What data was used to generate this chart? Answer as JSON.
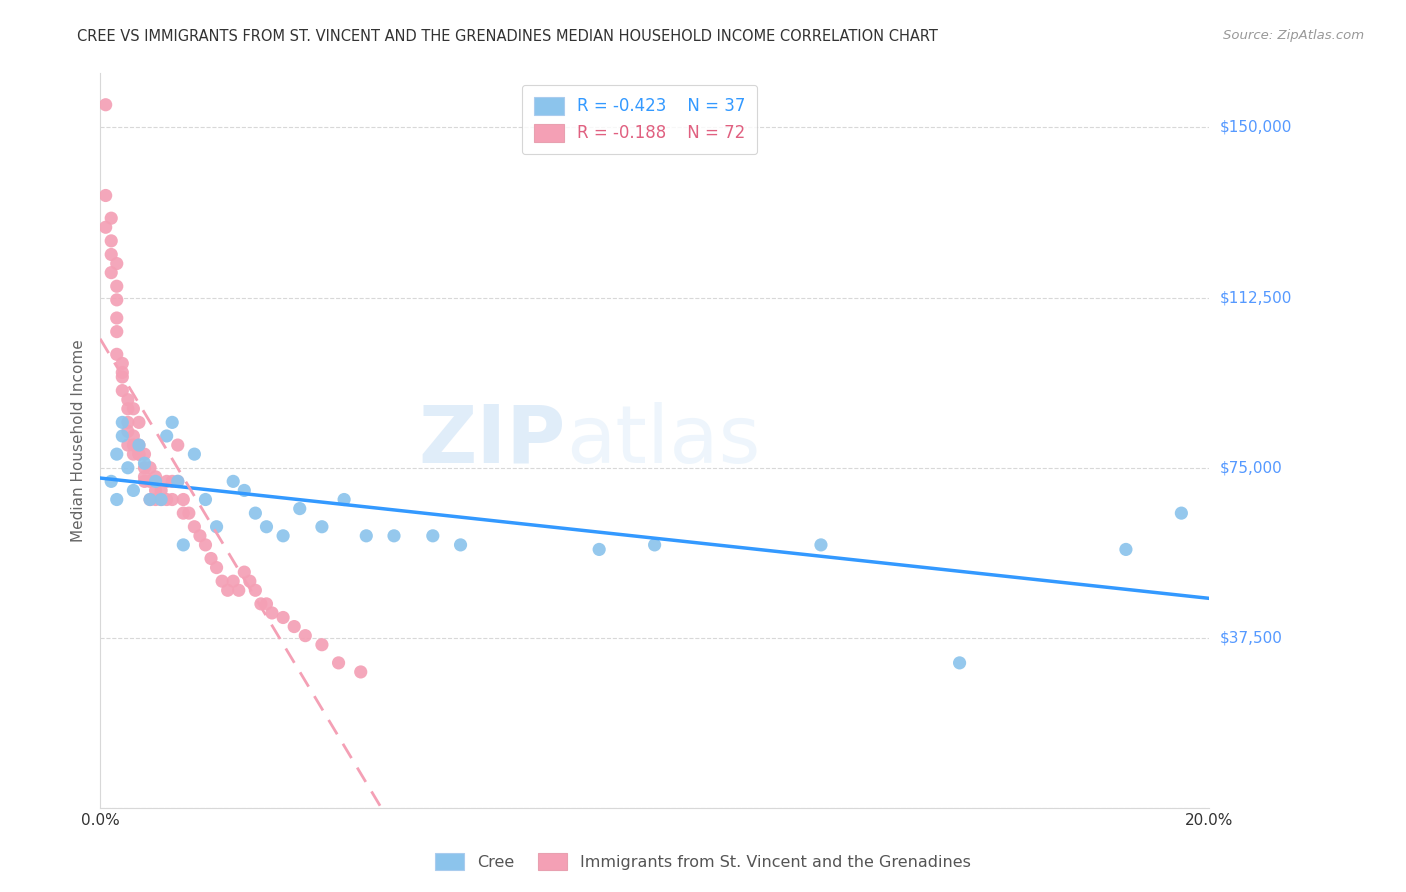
{
  "title": "CREE VS IMMIGRANTS FROM ST. VINCENT AND THE GRENADINES MEDIAN HOUSEHOLD INCOME CORRELATION CHART",
  "source": "Source: ZipAtlas.com",
  "ylabel": "Median Household Income",
  "yticks": [
    0,
    37500,
    75000,
    112500,
    150000
  ],
  "ytick_labels": [
    "",
    "$37,500",
    "$75,000",
    "$112,500",
    "$150,000"
  ],
  "xlim": [
    0.0,
    0.2
  ],
  "ylim": [
    0,
    162000
  ],
  "cree_color": "#8CC4EC",
  "svg_color": "#F4A0B5",
  "cree_line_color": "#3399FF",
  "svg_line_color": "#F4A0B5",
  "cree_R": "-0.423",
  "cree_N": "37",
  "svg_R": "-0.188",
  "svg_N": "72",
  "legend_blue_label": "Cree",
  "legend_pink_label": "Immigrants from St. Vincent and the Grenadines",
  "watermark_zip": "ZIP",
  "watermark_atlas": "atlas",
  "cree_scatter_x": [
    0.002,
    0.003,
    0.003,
    0.004,
    0.004,
    0.005,
    0.006,
    0.007,
    0.008,
    0.009,
    0.01,
    0.011,
    0.012,
    0.013,
    0.014,
    0.015,
    0.017,
    0.019,
    0.021,
    0.024,
    0.026,
    0.028,
    0.03,
    0.033,
    0.036,
    0.04,
    0.044,
    0.048,
    0.053,
    0.06,
    0.065,
    0.09,
    0.1,
    0.13,
    0.155,
    0.185,
    0.195
  ],
  "cree_scatter_y": [
    72000,
    78000,
    68000,
    82000,
    85000,
    75000,
    70000,
    80000,
    76000,
    68000,
    72000,
    68000,
    82000,
    85000,
    72000,
    58000,
    78000,
    68000,
    62000,
    72000,
    70000,
    65000,
    62000,
    60000,
    66000,
    62000,
    68000,
    60000,
    60000,
    60000,
    58000,
    57000,
    58000,
    58000,
    32000,
    57000,
    65000
  ],
  "svg_scatter_x": [
    0.001,
    0.001,
    0.001,
    0.002,
    0.002,
    0.002,
    0.002,
    0.003,
    0.003,
    0.003,
    0.003,
    0.003,
    0.003,
    0.004,
    0.004,
    0.004,
    0.004,
    0.005,
    0.005,
    0.005,
    0.005,
    0.005,
    0.006,
    0.006,
    0.006,
    0.006,
    0.007,
    0.007,
    0.007,
    0.007,
    0.008,
    0.008,
    0.008,
    0.008,
    0.009,
    0.009,
    0.009,
    0.01,
    0.01,
    0.01,
    0.011,
    0.011,
    0.012,
    0.012,
    0.013,
    0.013,
    0.014,
    0.014,
    0.015,
    0.015,
    0.016,
    0.017,
    0.018,
    0.019,
    0.02,
    0.021,
    0.022,
    0.023,
    0.024,
    0.025,
    0.026,
    0.027,
    0.028,
    0.029,
    0.03,
    0.031,
    0.033,
    0.035,
    0.037,
    0.04,
    0.043,
    0.047
  ],
  "svg_scatter_y": [
    155000,
    135000,
    128000,
    130000,
    122000,
    118000,
    125000,
    120000,
    115000,
    112000,
    108000,
    105000,
    100000,
    98000,
    96000,
    95000,
    92000,
    90000,
    88000,
    85000,
    83000,
    80000,
    82000,
    80000,
    78000,
    88000,
    78000,
    80000,
    85000,
    78000,
    78000,
    75000,
    73000,
    72000,
    75000,
    72000,
    68000,
    73000,
    70000,
    68000,
    70000,
    68000,
    72000,
    68000,
    72000,
    68000,
    80000,
    72000,
    68000,
    65000,
    65000,
    62000,
    60000,
    58000,
    55000,
    53000,
    50000,
    48000,
    50000,
    48000,
    52000,
    50000,
    48000,
    45000,
    45000,
    43000,
    42000,
    40000,
    38000,
    36000,
    32000,
    30000
  ],
  "background_color": "#ffffff",
  "grid_color": "#d8d8d8",
  "title_color": "#333333",
  "axis_label_color": "#666666",
  "ytick_color": "#5599ff",
  "xtick_color": "#333333"
}
